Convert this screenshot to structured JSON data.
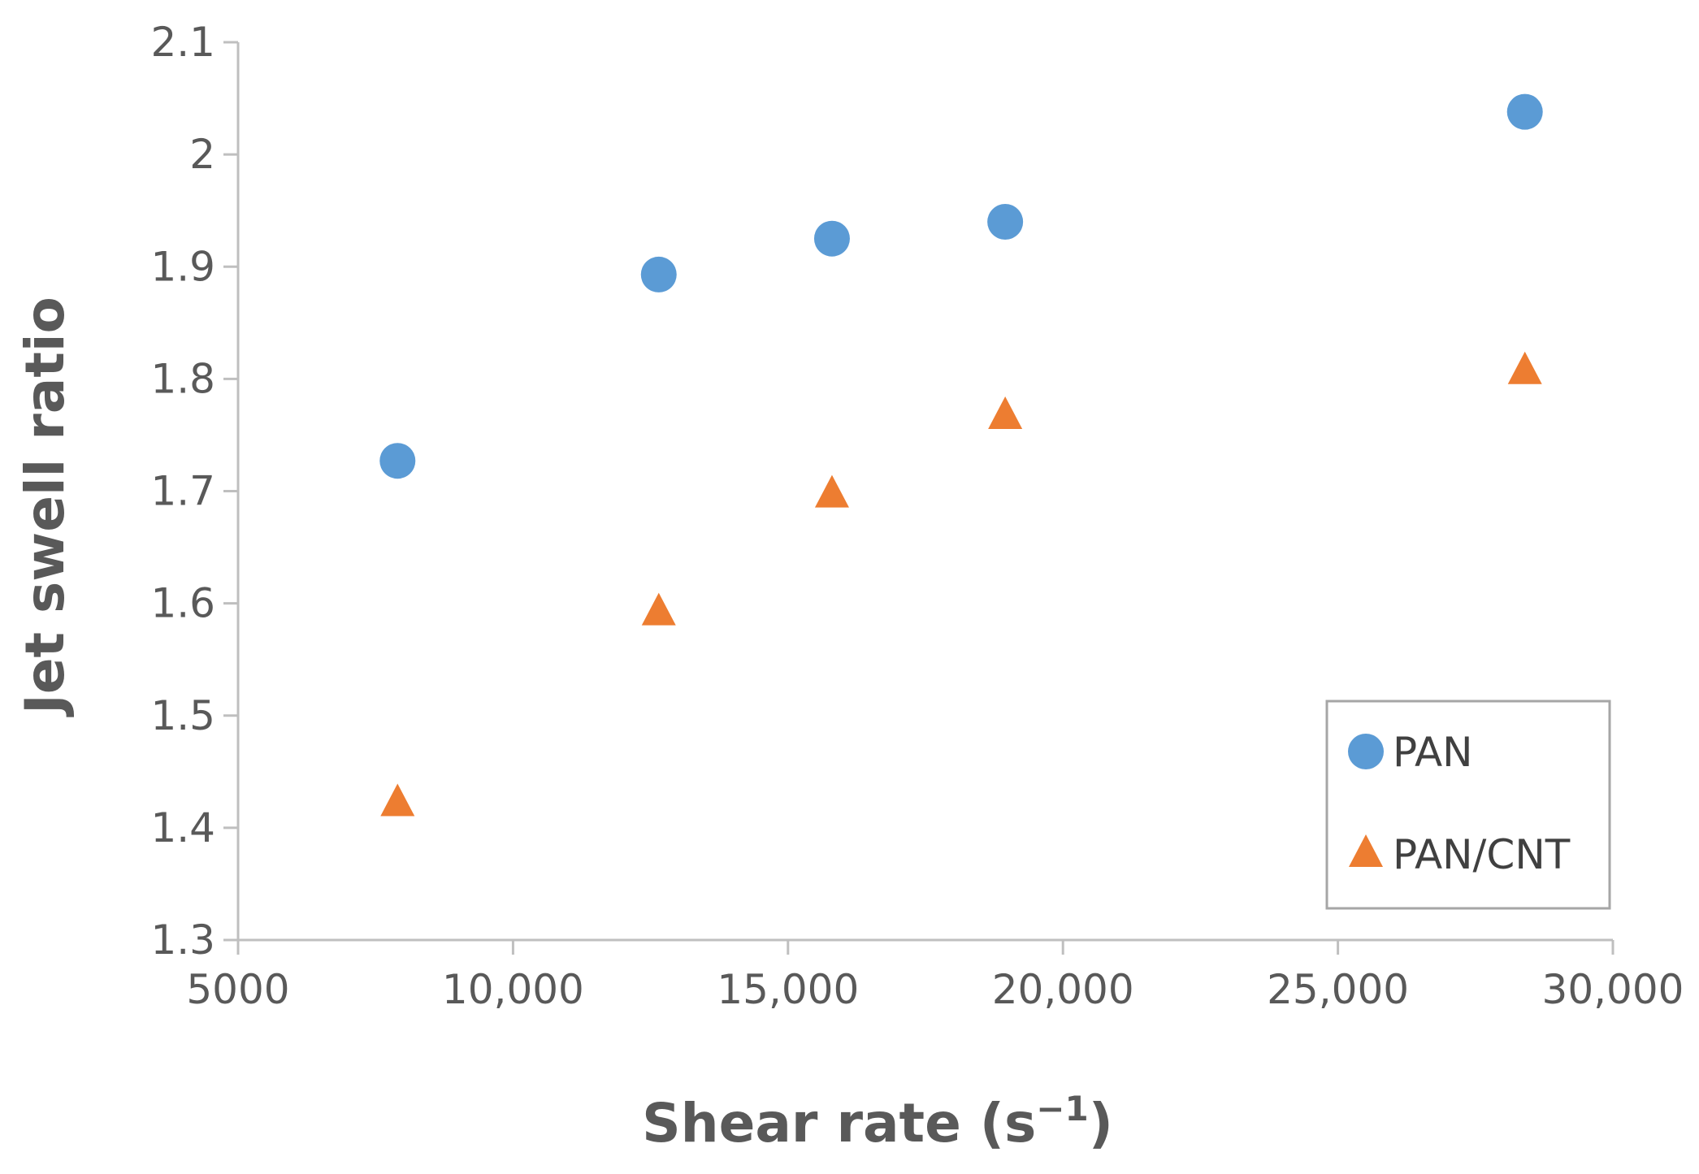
{
  "chart_data": {
    "type": "scatter",
    "title": "",
    "xlabel": "Shear rate (s",
    "xlabel_sup": "−1",
    "xlabel_close": ")",
    "ylabel": "Jet swell ratio",
    "xlim": [
      5000,
      30000
    ],
    "ylim": [
      1.3,
      2.1
    ],
    "x_ticks": [
      5000,
      10000,
      15000,
      20000,
      25000,
      30000
    ],
    "x_tick_labels": [
      "5000",
      "10,000",
      "15,000",
      "20,000",
      "25,000",
      "30,000"
    ],
    "y_ticks": [
      1.3,
      1.4,
      1.5,
      1.6,
      1.7,
      1.8,
      1.9,
      2.0,
      2.1
    ],
    "y_tick_labels": [
      "1.3",
      "1.4",
      "1.5",
      "1.6",
      "1.7",
      "1.8",
      "1.9",
      "2",
      "2.1"
    ],
    "grid": false,
    "legend_position": "bottom-right",
    "series": [
      {
        "name": "PAN",
        "marker": "circle",
        "color": "#5B9BD5",
        "x": [
          7900,
          12650,
          15800,
          18950,
          28400
        ],
        "y": [
          1.727,
          1.893,
          1.925,
          1.94,
          2.038
        ]
      },
      {
        "name": "PAN/CNT",
        "marker": "triangle",
        "color": "#ED7D31",
        "x": [
          7900,
          12650,
          15800,
          18950,
          28400
        ],
        "y": [
          1.422,
          1.592,
          1.697,
          1.767,
          1.807
        ]
      }
    ]
  }
}
